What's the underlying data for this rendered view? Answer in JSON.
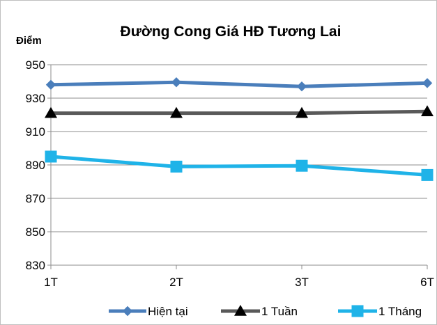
{
  "chart_data": {
    "type": "line",
    "title": "Đường Cong Giá HĐ Tương Lai",
    "xlabel": "",
    "ylabel": "Điểm",
    "categories": [
      "1T",
      "2T",
      "3T",
      "6T"
    ],
    "ylim": [
      830,
      950
    ],
    "yticks": [
      830,
      850,
      870,
      890,
      910,
      930,
      950
    ],
    "grid": true,
    "legend_position": "bottom",
    "series": [
      {
        "name": "Hiện tại",
        "values": [
          938,
          939.5,
          937,
          939
        ],
        "color": "#4a7ebb",
        "marker": "diamond"
      },
      {
        "name": "1 Tuần",
        "values": [
          921,
          921,
          921,
          922
        ],
        "color": "#595959",
        "marker": "triangle"
      },
      {
        "name": "1 Tháng",
        "values": [
          895,
          889,
          889.5,
          884
        ],
        "color": "#1fb3e8",
        "marker": "square"
      }
    ]
  }
}
